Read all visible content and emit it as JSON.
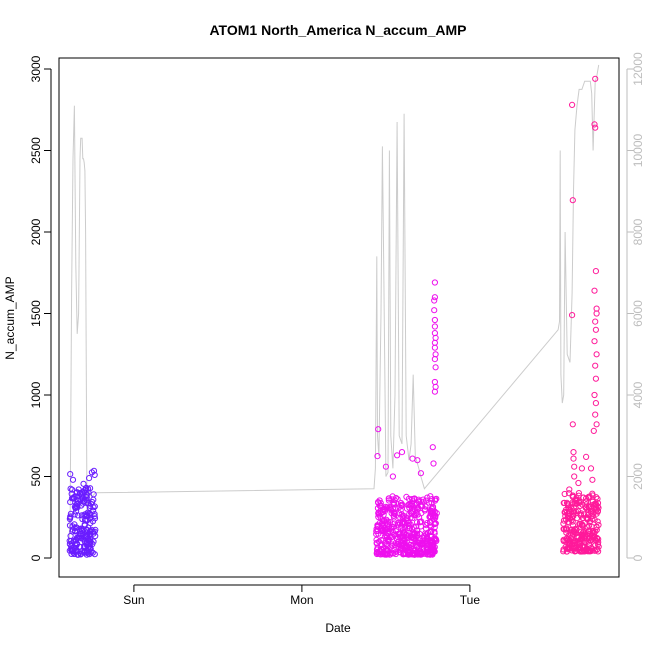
{
  "chart_data": {
    "type": "scatter",
    "title": "ATOM1 North_America N_accum_AMP",
    "xlabel": "Date",
    "ylabel": "N_accum_AMP",
    "x_ticks": [
      "Sun",
      "Mon",
      "Tue"
    ],
    "x_tick_hours": [
      24,
      48,
      72
    ],
    "x_range_hours": [
      13.3,
      93.3
    ],
    "ylim": [
      0,
      3000
    ],
    "y_ticks": [
      0,
      500,
      1000,
      1500,
      2000,
      2500,
      3000
    ],
    "right_ylim": [
      0,
      12000
    ],
    "right_ticks": [
      0,
      2000,
      4000,
      6000,
      8000,
      10000,
      12000
    ],
    "legend": "none",
    "grid": false,
    "colors": {
      "cluster1": "#6a1dff",
      "cluster2": "#ee10ee",
      "cluster3": "#ff1a9a",
      "line": "#cccccc",
      "right_axis": "#bdbdbd"
    },
    "clusters": [
      {
        "color_key": "cluster1",
        "start_hour": 14.8,
        "end_hour": 18.5,
        "base_min": 20,
        "base_max": 430,
        "spikes": [
          [
            14.9,
            515
          ],
          [
            15.3,
            480
          ],
          [
            16.8,
            455
          ],
          [
            17.6,
            490
          ],
          [
            18.0,
            525
          ],
          [
            18.3,
            535
          ],
          [
            18.4,
            510
          ],
          [
            15.8,
            400
          ],
          [
            17.2,
            430
          ]
        ]
      },
      {
        "color_key": "cluster2",
        "start_hour": 58.6,
        "end_hour": 67.3,
        "base_min": 20,
        "base_max": 380,
        "spikes": [
          [
            58.9,
            790
          ],
          [
            58.8,
            625
          ],
          [
            60.0,
            560
          ],
          [
            61.0,
            500
          ],
          [
            61.6,
            630
          ],
          [
            62.3,
            650
          ],
          [
            63.8,
            610
          ],
          [
            64.5,
            600
          ],
          [
            65.0,
            520
          ],
          [
            66.7,
            680
          ],
          [
            66.8,
            580
          ],
          [
            67.0,
            1690
          ],
          [
            67.0,
            1600
          ],
          [
            66.9,
            1580
          ],
          [
            66.9,
            1520
          ],
          [
            67.0,
            1460
          ],
          [
            67.0,
            1420
          ],
          [
            67.0,
            1380
          ],
          [
            67.1,
            1350
          ],
          [
            67.0,
            1320
          ],
          [
            67.0,
            1290
          ],
          [
            67.1,
            1250
          ],
          [
            67.0,
            1220
          ],
          [
            67.1,
            1170
          ],
          [
            67.0,
            1080
          ],
          [
            67.1,
            1050
          ],
          [
            67.0,
            1020
          ]
        ]
      },
      {
        "color_key": "cluster3",
        "start_hour": 85.3,
        "end_hour": 90.4,
        "base_min": 40,
        "base_max": 400,
        "spikes": [
          [
            86.6,
            2780
          ],
          [
            86.7,
            2195
          ],
          [
            86.6,
            1490
          ],
          [
            86.7,
            820
          ],
          [
            86.8,
            650
          ],
          [
            86.8,
            610
          ],
          [
            86.9,
            560
          ],
          [
            86.9,
            500
          ],
          [
            89.9,
            2940
          ],
          [
            89.8,
            2660
          ],
          [
            89.9,
            2640
          ],
          [
            90.0,
            1760
          ],
          [
            89.8,
            1640
          ],
          [
            90.1,
            1530
          ],
          [
            90.1,
            1500
          ],
          [
            89.9,
            1450
          ],
          [
            90.0,
            1400
          ],
          [
            89.8,
            1330
          ],
          [
            90.1,
            1250
          ],
          [
            89.9,
            1180
          ],
          [
            90.0,
            1100
          ],
          [
            89.8,
            1000
          ],
          [
            90.0,
            950
          ],
          [
            89.9,
            880
          ],
          [
            90.1,
            820
          ],
          [
            89.7,
            780
          ],
          [
            88.6,
            620
          ],
          [
            88.0,
            550
          ],
          [
            89.3,
            550
          ],
          [
            89.5,
            480
          ],
          [
            87.5,
            460
          ],
          [
            86.2,
            420
          ]
        ]
      }
    ],
    "line_series": {
      "axis": "right",
      "points": [
        [
          14.7,
          200
        ],
        [
          14.9,
          1200
        ],
        [
          15.1,
          6500
        ],
        [
          15.3,
          9800
        ],
        [
          15.5,
          11100
        ],
        [
          15.7,
          7200
        ],
        [
          15.9,
          5500
        ],
        [
          16.1,
          6000
        ],
        [
          16.3,
          9800
        ],
        [
          16.4,
          10300
        ],
        [
          16.6,
          10300
        ],
        [
          16.7,
          9800
        ],
        [
          16.8,
          9800
        ],
        [
          16.9,
          9700
        ],
        [
          17.0,
          9500
        ],
        [
          17.1,
          8000
        ],
        [
          17.3,
          1000
        ],
        [
          17.6,
          1600
        ],
        [
          18.0,
          1500
        ],
        [
          18.5,
          1600
        ],
        [
          58.3,
          1700
        ],
        [
          58.5,
          2200
        ],
        [
          58.7,
          7400
        ],
        [
          58.8,
          3000
        ],
        [
          59.0,
          2500
        ],
        [
          59.3,
          6000
        ],
        [
          59.5,
          10100
        ],
        [
          59.7,
          7000
        ],
        [
          60.0,
          2000
        ],
        [
          60.3,
          2100
        ],
        [
          60.5,
          10000
        ],
        [
          60.7,
          3000
        ],
        [
          61.0,
          2200
        ],
        [
          61.3,
          4000
        ],
        [
          61.6,
          10700
        ],
        [
          61.9,
          3000
        ],
        [
          62.3,
          2800
        ],
        [
          62.6,
          10900
        ],
        [
          62.9,
          3000
        ],
        [
          63.3,
          2400
        ],
        [
          63.6,
          2800
        ],
        [
          63.9,
          4500
        ],
        [
          64.2,
          2500
        ],
        [
          64.7,
          2200
        ],
        [
          65.0,
          2000
        ],
        [
          65.5,
          1700
        ],
        [
          84.6,
          5600
        ],
        [
          84.8,
          5800
        ],
        [
          84.9,
          10000
        ],
        [
          85.0,
          4500
        ],
        [
          85.2,
          3800
        ],
        [
          85.4,
          4000
        ],
        [
          85.6,
          8000
        ],
        [
          85.9,
          5000
        ],
        [
          86.3,
          4800
        ],
        [
          86.6,
          6500
        ],
        [
          86.8,
          9000
        ],
        [
          87.0,
          10500
        ],
        [
          87.3,
          11100
        ],
        [
          87.6,
          11500
        ],
        [
          88.0,
          11500
        ],
        [
          88.4,
          11700
        ],
        [
          88.8,
          11700
        ],
        [
          89.2,
          11700
        ],
        [
          89.4,
          11400
        ],
        [
          89.6,
          10000
        ],
        [
          89.9,
          11700
        ],
        [
          90.1,
          11800
        ],
        [
          90.4,
          12100
        ]
      ]
    }
  }
}
